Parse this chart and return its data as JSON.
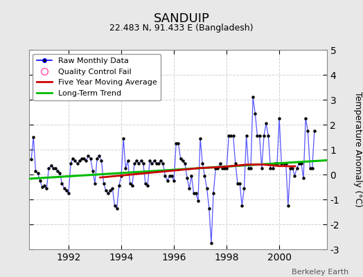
{
  "title": "SANDUIP",
  "subtitle": "22.483 N, 91.433 E (Bangladesh)",
  "ylabel": "Temperature Anomaly (°C)",
  "credit": "Berkeley Earth",
  "background_color": "#e8e8e8",
  "plot_bg_color": "#ffffff",
  "grid_color": "#d0d0d0",
  "ylim": [
    -3,
    5
  ],
  "yticks": [
    -3,
    -2,
    -1,
    0,
    1,
    2,
    3,
    4,
    5
  ],
  "xlim_start": 1990.5,
  "xlim_end": 2001.8,
  "xticks": [
    1992,
    1994,
    1996,
    1998,
    2000
  ],
  "raw_line_color": "#5555ff",
  "raw_marker_color": "#000000",
  "moving_avg_color": "#cc0000",
  "trend_color": "#00bb00",
  "raw_data": [
    [
      1990.583,
      0.6
    ],
    [
      1990.667,
      1.5
    ],
    [
      1990.75,
      0.15
    ],
    [
      1990.833,
      0.05
    ],
    [
      1990.917,
      -0.25
    ],
    [
      1991.0,
      -0.5
    ],
    [
      1991.083,
      -0.45
    ],
    [
      1991.167,
      -0.55
    ],
    [
      1991.25,
      0.25
    ],
    [
      1991.333,
      0.35
    ],
    [
      1991.417,
      0.25
    ],
    [
      1991.5,
      0.25
    ],
    [
      1991.583,
      0.15
    ],
    [
      1991.667,
      0.05
    ],
    [
      1991.75,
      -0.35
    ],
    [
      1991.833,
      -0.55
    ],
    [
      1991.917,
      -0.65
    ],
    [
      1992.0,
      -0.75
    ],
    [
      1992.083,
      0.45
    ],
    [
      1992.167,
      0.65
    ],
    [
      1992.25,
      0.55
    ],
    [
      1992.333,
      0.45
    ],
    [
      1992.417,
      0.55
    ],
    [
      1992.5,
      0.65
    ],
    [
      1992.583,
      0.65
    ],
    [
      1992.667,
      0.55
    ],
    [
      1992.75,
      0.75
    ],
    [
      1992.833,
      0.65
    ],
    [
      1992.917,
      0.15
    ],
    [
      1993.0,
      -0.35
    ],
    [
      1993.083,
      0.65
    ],
    [
      1993.167,
      0.75
    ],
    [
      1993.25,
      0.55
    ],
    [
      1993.333,
      -0.35
    ],
    [
      1993.417,
      -0.65
    ],
    [
      1993.5,
      -0.75
    ],
    [
      1993.583,
      -0.65
    ],
    [
      1993.667,
      -0.55
    ],
    [
      1993.75,
      -1.25
    ],
    [
      1993.833,
      -1.35
    ],
    [
      1993.917,
      -0.45
    ],
    [
      1994.0,
      -0.05
    ],
    [
      1994.083,
      1.45
    ],
    [
      1994.167,
      0.25
    ],
    [
      1994.25,
      0.55
    ],
    [
      1994.333,
      -0.35
    ],
    [
      1994.417,
      -0.45
    ],
    [
      1994.5,
      0.45
    ],
    [
      1994.583,
      0.55
    ],
    [
      1994.667,
      0.45
    ],
    [
      1994.75,
      0.55
    ],
    [
      1994.833,
      0.45
    ],
    [
      1994.917,
      -0.35
    ],
    [
      1995.0,
      -0.45
    ],
    [
      1995.083,
      0.55
    ],
    [
      1995.167,
      0.45
    ],
    [
      1995.25,
      0.55
    ],
    [
      1995.333,
      0.45
    ],
    [
      1995.417,
      0.45
    ],
    [
      1995.5,
      0.55
    ],
    [
      1995.583,
      0.45
    ],
    [
      1995.667,
      -0.05
    ],
    [
      1995.75,
      -0.25
    ],
    [
      1995.833,
      -0.05
    ],
    [
      1995.917,
      -0.05
    ],
    [
      1996.0,
      -0.25
    ],
    [
      1996.083,
      1.25
    ],
    [
      1996.167,
      1.25
    ],
    [
      1996.25,
      0.65
    ],
    [
      1996.333,
      0.55
    ],
    [
      1996.417,
      0.45
    ],
    [
      1996.5,
      -0.15
    ],
    [
      1996.583,
      -0.55
    ],
    [
      1996.667,
      -0.05
    ],
    [
      1996.75,
      -0.75
    ],
    [
      1996.833,
      -0.75
    ],
    [
      1996.917,
      -1.05
    ],
    [
      1997.0,
      1.45
    ],
    [
      1997.083,
      0.45
    ],
    [
      1997.167,
      -0.05
    ],
    [
      1997.25,
      -0.55
    ],
    [
      1997.333,
      -1.35
    ],
    [
      1997.417,
      -2.75
    ],
    [
      1997.5,
      -0.75
    ],
    [
      1997.583,
      0.25
    ],
    [
      1997.667,
      0.25
    ],
    [
      1997.75,
      0.45
    ],
    [
      1997.833,
      0.25
    ],
    [
      1997.917,
      0.25
    ],
    [
      1998.0,
      0.25
    ],
    [
      1998.083,
      1.55
    ],
    [
      1998.167,
      1.55
    ],
    [
      1998.25,
      1.55
    ],
    [
      1998.333,
      0.45
    ],
    [
      1998.417,
      -0.35
    ],
    [
      1998.5,
      -0.35
    ],
    [
      1998.583,
      -1.25
    ],
    [
      1998.667,
      -0.55
    ],
    [
      1998.75,
      1.55
    ],
    [
      1998.833,
      0.25
    ],
    [
      1998.917,
      0.25
    ],
    [
      1999.0,
      3.1
    ],
    [
      1999.083,
      2.45
    ],
    [
      1999.167,
      1.55
    ],
    [
      1999.25,
      1.55
    ],
    [
      1999.333,
      0.25
    ],
    [
      1999.417,
      1.55
    ],
    [
      1999.5,
      2.05
    ],
    [
      1999.583,
      1.55
    ],
    [
      1999.667,
      0.25
    ],
    [
      1999.75,
      0.25
    ],
    [
      1999.833,
      0.45
    ],
    [
      1999.917,
      0.45
    ],
    [
      2000.0,
      2.25
    ],
    [
      2000.083,
      0.45
    ],
    [
      2000.167,
      0.45
    ],
    [
      2000.25,
      0.45
    ],
    [
      2000.333,
      -1.25
    ],
    [
      2000.417,
      0.25
    ],
    [
      2000.5,
      0.25
    ],
    [
      2000.583,
      -0.05
    ],
    [
      2000.667,
      0.25
    ],
    [
      2000.75,
      0.45
    ],
    [
      2000.833,
      0.45
    ],
    [
      2000.917,
      -0.15
    ],
    [
      2001.0,
      2.25
    ],
    [
      2001.083,
      1.75
    ],
    [
      2001.167,
      0.25
    ],
    [
      2001.25,
      0.25
    ],
    [
      2001.333,
      1.75
    ]
  ],
  "moving_avg_data": [
    [
      1993.2,
      -0.12
    ],
    [
      1993.4,
      -0.1
    ],
    [
      1993.6,
      -0.08
    ],
    [
      1993.8,
      -0.06
    ],
    [
      1994.0,
      -0.04
    ],
    [
      1994.2,
      -0.02
    ],
    [
      1994.4,
      0.0
    ],
    [
      1994.6,
      0.02
    ],
    [
      1994.8,
      0.04
    ],
    [
      1995.0,
      0.06
    ],
    [
      1995.2,
      0.08
    ],
    [
      1995.4,
      0.1
    ],
    [
      1995.6,
      0.12
    ],
    [
      1995.8,
      0.14
    ],
    [
      1996.0,
      0.16
    ],
    [
      1996.2,
      0.18
    ],
    [
      1996.4,
      0.2
    ],
    [
      1996.6,
      0.22
    ],
    [
      1996.8,
      0.24
    ],
    [
      1997.0,
      0.26
    ],
    [
      1997.2,
      0.27
    ],
    [
      1997.4,
      0.28
    ],
    [
      1997.6,
      0.29
    ],
    [
      1997.8,
      0.3
    ],
    [
      1998.0,
      0.32
    ],
    [
      1998.2,
      0.34
    ],
    [
      1998.4,
      0.36
    ],
    [
      1998.6,
      0.38
    ],
    [
      1998.8,
      0.4
    ],
    [
      1999.0,
      0.4
    ],
    [
      1999.2,
      0.4
    ],
    [
      1999.4,
      0.4
    ],
    [
      1999.6,
      0.38
    ],
    [
      1999.8,
      0.36
    ],
    [
      2000.0,
      0.34
    ],
    [
      2000.2,
      0.34
    ],
    [
      2000.4,
      0.33
    ],
    [
      2000.6,
      0.33
    ]
  ],
  "trend_data": [
    [
      1990.5,
      -0.17
    ],
    [
      2001.8,
      0.57
    ]
  ]
}
